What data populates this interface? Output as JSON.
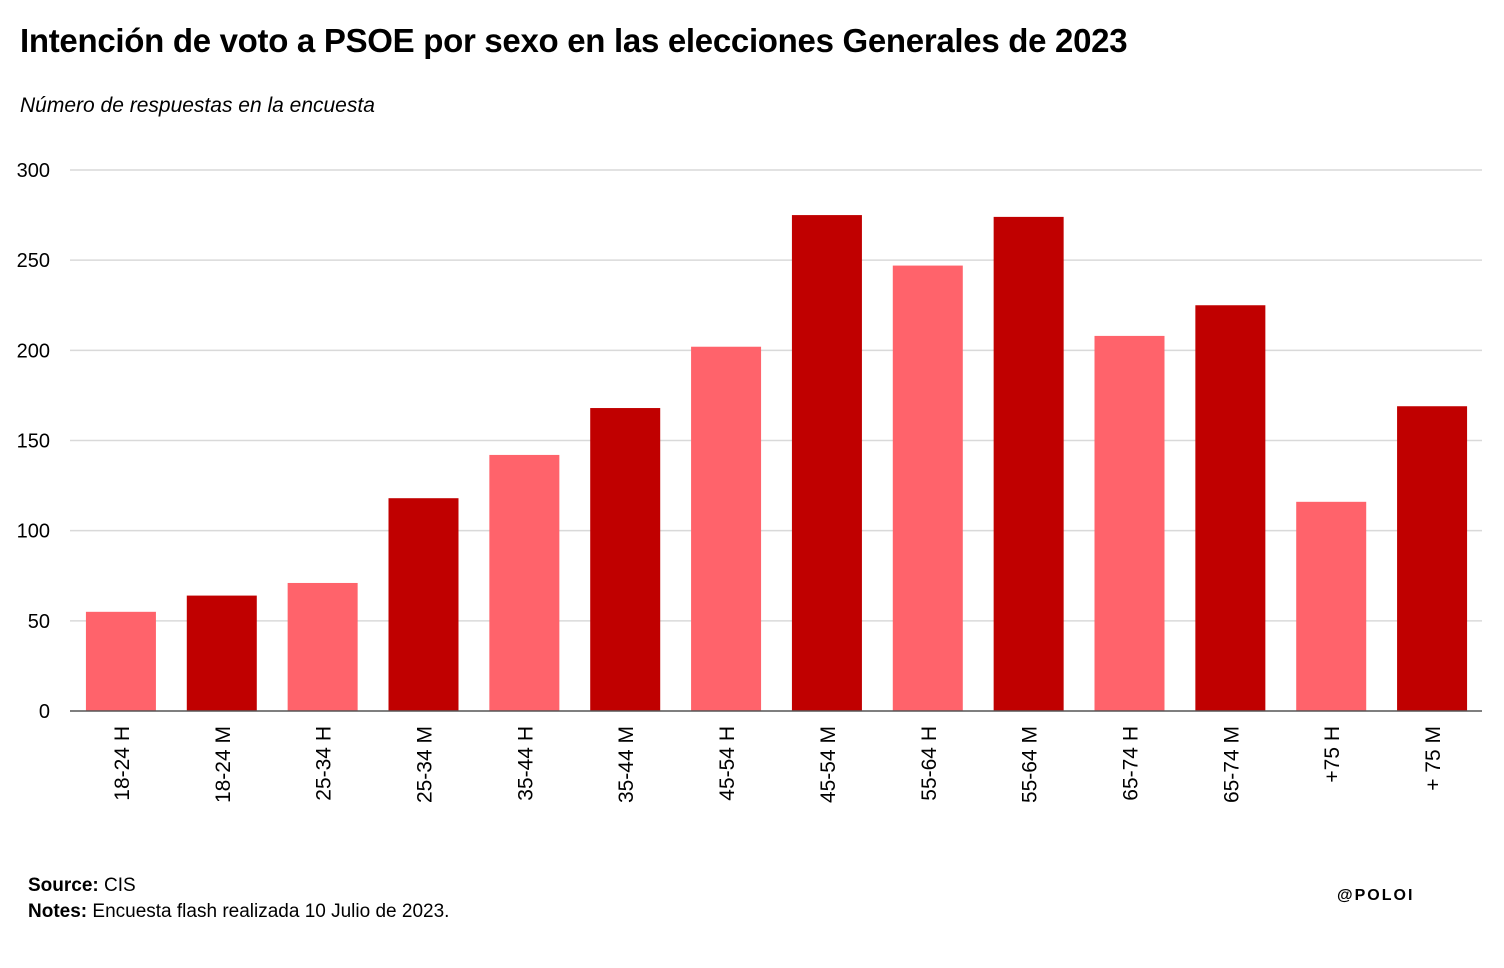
{
  "title": "Intención de voto a PSOE por sexo en las elecciones Generales de 2023",
  "subtitle": "Número de respuestas en la encuesta",
  "footer": {
    "source_label": "Source:",
    "source_value": "CIS",
    "notes_label": "Notes:",
    "notes_value": "Encuesta flash realizada 10 Julio de 2023."
  },
  "brand": "@POLOI",
  "colors": {
    "light": "#ff636b",
    "dark": "#c00000",
    "grid": "#d9d9d9",
    "axis": "#555555"
  },
  "chart_data": {
    "type": "bar",
    "title": "Intención de voto a PSOE por sexo en las elecciones Generales de 2023",
    "subtitle": "Número de respuestas en la encuesta",
    "xlabel": "",
    "ylabel": "",
    "ylim": [
      0,
      300
    ],
    "yticks": [
      0,
      50,
      100,
      150,
      200,
      250,
      300
    ],
    "grid": true,
    "legend": "none",
    "categories": [
      "18-24 H",
      "18-24 M",
      "25-34 H",
      "25-34 M",
      "35-44 H",
      "35-44 M",
      "45-54 H",
      "45-54 M",
      "55-64 H",
      "55-64 M",
      "65-74 H",
      "65-74 M",
      "+75 H",
      "+ 75 M"
    ],
    "values": [
      55,
      64,
      71,
      118,
      142,
      168,
      202,
      275,
      247,
      274,
      208,
      225,
      116,
      169
    ],
    "bar_colors": [
      "light",
      "dark",
      "light",
      "dark",
      "light",
      "dark",
      "light",
      "dark",
      "light",
      "dark",
      "light",
      "dark",
      "light",
      "dark"
    ]
  }
}
